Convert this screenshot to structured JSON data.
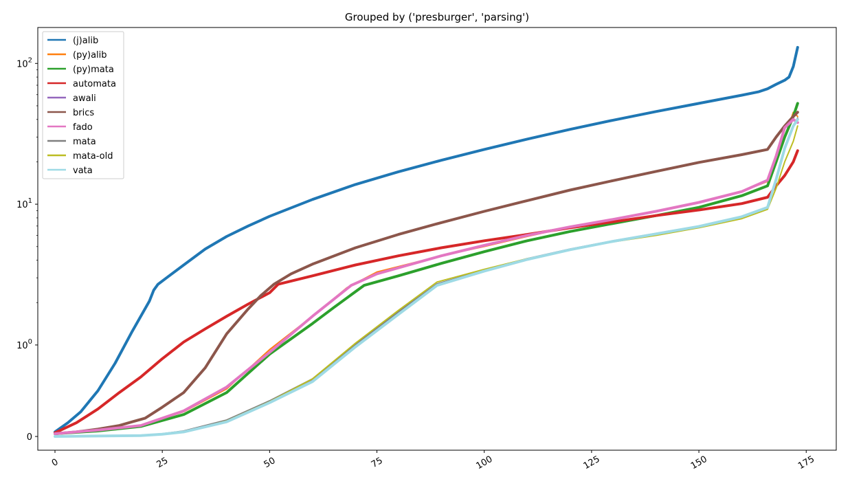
{
  "chart_data": {
    "type": "line",
    "title": "Grouped by ('presburger', 'parsing')",
    "xlabel": "",
    "ylabel": "",
    "yscale": "symlog",
    "xlim": [
      -4,
      182
    ],
    "ylim": [
      -0.15,
      180
    ],
    "grid": false,
    "legend_position": "top-left",
    "xticks": [
      0,
      25,
      50,
      75,
      100,
      125,
      150,
      175
    ],
    "xtick_labels": [
      "0",
      "25",
      "50",
      "75",
      "100",
      "125",
      "150",
      "175"
    ],
    "xtick_rotation": 30,
    "yticks": [
      0,
      1,
      10,
      100
    ],
    "ytick_labels": [
      "0",
      "10^0",
      "10^1",
      "10^2"
    ],
    "series": [
      {
        "name": "(j)alib",
        "color": "#1f77b4",
        "width": 4,
        "x": [
          0,
          3,
          6,
          10,
          14,
          18,
          20,
          22,
          23,
          24,
          26,
          30,
          35,
          40,
          45,
          50,
          60,
          70,
          80,
          90,
          100,
          110,
          120,
          130,
          140,
          150,
          160,
          164,
          166,
          168,
          170,
          171,
          172,
          173
        ],
        "y": [
          0.05,
          0.15,
          0.27,
          0.5,
          0.8,
          1.25,
          1.6,
          2.05,
          2.45,
          2.7,
          3.0,
          3.7,
          4.8,
          5.9,
          7.0,
          8.2,
          10.8,
          13.8,
          17.0,
          20.5,
          24.5,
          29.0,
          34.0,
          39.5,
          45.5,
          52.0,
          59.5,
          63.0,
          66.0,
          71.0,
          76.0,
          80.0,
          95.0,
          130.0
        ]
      },
      {
        "name": "(py)alib",
        "color": "#ff7f0e",
        "width": 2,
        "x": [
          0,
          10,
          20,
          30,
          40,
          50,
          60,
          68,
          75,
          90,
          100,
          110,
          120,
          130,
          140,
          150,
          160,
          166,
          168,
          170,
          172,
          173
        ],
        "y": [
          0.03,
          0.07,
          0.12,
          0.27,
          0.52,
          0.95,
          1.6,
          2.55,
          3.3,
          4.3,
          5.0,
          5.9,
          6.9,
          7.8,
          8.9,
          10.3,
          12.3,
          14.5,
          20.0,
          30.0,
          45.0,
          42.0
        ]
      },
      {
        "name": "(py)mata",
        "color": "#2ca02c",
        "width": 4,
        "x": [
          0,
          10,
          20,
          30,
          40,
          50,
          60,
          65,
          72,
          80,
          90,
          100,
          110,
          120,
          130,
          140,
          150,
          160,
          166,
          168,
          170,
          172,
          173
        ],
        "y": [
          0.03,
          0.06,
          0.11,
          0.24,
          0.48,
          0.9,
          1.42,
          1.85,
          2.65,
          3.1,
          3.8,
          4.6,
          5.5,
          6.4,
          7.3,
          8.3,
          9.5,
          11.5,
          13.5,
          20.0,
          30.0,
          42.0,
          52.0
        ]
      },
      {
        "name": "automata",
        "color": "#d62728",
        "width": 4,
        "x": [
          0,
          5,
          10,
          15,
          20,
          25,
          30,
          35,
          40,
          45,
          50,
          52,
          60,
          70,
          80,
          90,
          100,
          110,
          120,
          130,
          140,
          150,
          160,
          166,
          168,
          170,
          172,
          173
        ],
        "y": [
          0.04,
          0.15,
          0.3,
          0.48,
          0.65,
          0.85,
          1.05,
          1.3,
          1.6,
          1.95,
          2.35,
          2.7,
          3.1,
          3.7,
          4.3,
          4.9,
          5.5,
          6.1,
          6.8,
          7.5,
          8.3,
          9.1,
          10.1,
          11.2,
          13.5,
          16.0,
          20.0,
          24.0
        ]
      },
      {
        "name": "awali",
        "color": "#9467bd",
        "width": 2,
        "x": [
          0,
          20,
          25,
          30,
          40,
          50,
          60,
          70,
          80,
          89,
          100,
          110,
          120,
          130,
          140,
          150,
          160,
          166,
          168,
          170,
          172,
          173
        ],
        "y": [
          0.0,
          0.01,
          0.025,
          0.05,
          0.17,
          0.38,
          0.62,
          1.0,
          1.7,
          2.7,
          3.4,
          4.1,
          4.8,
          5.5,
          6.2,
          7.0,
          8.2,
          9.5,
          15.0,
          25.0,
          36.0,
          40.0
        ]
      },
      {
        "name": "brics",
        "color": "#8c564b",
        "width": 4,
        "x": [
          0,
          5,
          10,
          15,
          18,
          21,
          25,
          30,
          35,
          40,
          45,
          48,
          51,
          55,
          60,
          70,
          80,
          90,
          100,
          110,
          120,
          130,
          140,
          150,
          160,
          166,
          168,
          170,
          172,
          173
        ],
        "y": [
          0.03,
          0.05,
          0.08,
          0.12,
          0.16,
          0.2,
          0.32,
          0.48,
          0.75,
          1.2,
          1.8,
          2.25,
          2.7,
          3.2,
          3.75,
          4.9,
          6.1,
          7.4,
          8.9,
          10.6,
          12.6,
          14.7,
          17.1,
          19.8,
          22.5,
          24.5,
          30.0,
          36.0,
          42.0,
          45.0
        ]
      },
      {
        "name": "fado",
        "color": "#e377c2",
        "width": 4,
        "x": [
          0,
          10,
          20,
          30,
          40,
          50,
          60,
          69,
          75,
          90,
          100,
          110,
          120,
          130,
          140,
          150,
          160,
          166,
          168,
          170,
          172,
          173
        ],
        "y": [
          0.03,
          0.07,
          0.12,
          0.28,
          0.54,
          0.92,
          1.6,
          2.65,
          3.2,
          4.3,
          5.1,
          6.0,
          6.9,
          7.8,
          8.9,
          10.3,
          12.3,
          14.8,
          22.0,
          35.0,
          40.0,
          38.0
        ]
      },
      {
        "name": "mata",
        "color": "#7f7f7f",
        "width": 2,
        "x": [
          0,
          20,
          25,
          30,
          40,
          50,
          60,
          70,
          80,
          89,
          100,
          110,
          120,
          130,
          140,
          150,
          160,
          166,
          168,
          170,
          172,
          173
        ],
        "y": [
          0.0,
          0.012,
          0.03,
          0.06,
          0.18,
          0.39,
          0.63,
          1.01,
          1.72,
          2.72,
          3.4,
          4.1,
          4.8,
          5.5,
          6.2,
          7.0,
          8.2,
          9.5,
          15.0,
          25.0,
          36.0,
          41.0
        ]
      },
      {
        "name": "mata-old",
        "color": "#bcbd22",
        "width": 2,
        "x": [
          0,
          20,
          25,
          30,
          40,
          50,
          60,
          70,
          80,
          89,
          100,
          110,
          120,
          130,
          140,
          150,
          160,
          166,
          168,
          170,
          172,
          173
        ],
        "y": [
          0.0,
          0.01,
          0.025,
          0.05,
          0.17,
          0.38,
          0.63,
          1.03,
          1.76,
          2.8,
          3.45,
          4.1,
          4.75,
          5.4,
          6.0,
          6.8,
          7.9,
          9.2,
          13.0,
          20.0,
          28.0,
          36.0
        ]
      },
      {
        "name": "vata",
        "color": "#9edae5",
        "width": 4,
        "x": [
          0,
          20,
          25,
          30,
          40,
          50,
          60,
          70,
          80,
          89,
          100,
          110,
          120,
          130,
          140,
          150,
          160,
          166,
          168,
          170,
          172,
          173
        ],
        "y": [
          0.0,
          0.01,
          0.025,
          0.05,
          0.16,
          0.37,
          0.6,
          0.98,
          1.65,
          2.65,
          3.35,
          4.05,
          4.75,
          5.45,
          6.15,
          6.95,
          8.15,
          9.5,
          15.0,
          25.0,
          36.0,
          40.0
        ]
      }
    ]
  }
}
